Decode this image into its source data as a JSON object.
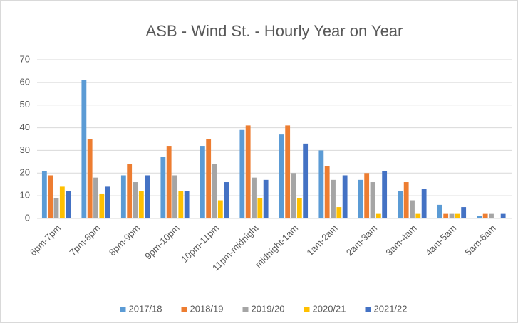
{
  "chart_data": {
    "type": "bar",
    "title": "ASB - Wind St. - Hourly Year on Year",
    "categories": [
      "6pm-7pm",
      "7pm-8pm",
      "8pm-9pm",
      "9pm-10pm",
      "10pm-11pm",
      "11pm-midnight",
      "midnight-1am",
      "1am-2am",
      "2am-3am",
      "3am-4am",
      "4am-5am",
      "5am-6am"
    ],
    "series": [
      {
        "name": "2017/18",
        "color": "#5b9bd5",
        "values": [
          21,
          61,
          19,
          27,
          32,
          39,
          37,
          30,
          17,
          12,
          6,
          1
        ]
      },
      {
        "name": "2018/19",
        "color": "#ed7d31",
        "values": [
          19,
          35,
          24,
          32,
          35,
          41,
          41,
          23,
          20,
          16,
          2,
          2
        ]
      },
      {
        "name": "2019/20",
        "color": "#a5a5a5",
        "values": [
          9,
          18,
          16,
          19,
          24,
          18,
          20,
          17,
          16,
          8,
          2,
          2
        ]
      },
      {
        "name": "2020/21",
        "color": "#ffc000",
        "values": [
          14,
          11,
          12,
          12,
          8,
          9,
          9,
          5,
          2,
          2,
          2,
          0
        ]
      },
      {
        "name": "2021/22",
        "color": "#4472c4",
        "values": [
          12,
          14,
          19,
          12,
          16,
          17,
          33,
          19,
          21,
          13,
          5,
          2
        ]
      }
    ],
    "ylim": [
      0,
      70
    ],
    "yticks": [
      0,
      10,
      20,
      30,
      40,
      50,
      60,
      70
    ],
    "grid": true,
    "legend": "bottom"
  }
}
